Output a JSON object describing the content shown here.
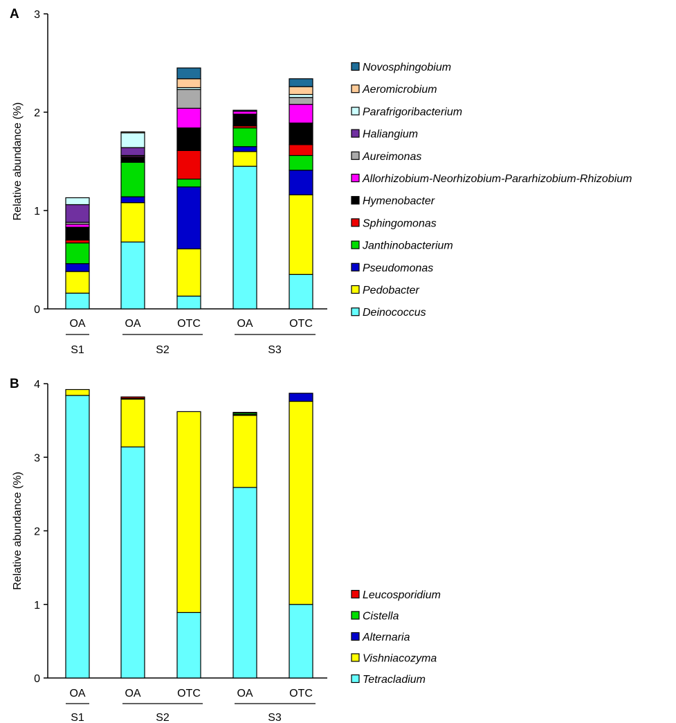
{
  "chart_data": [
    {
      "panel": "A",
      "type": "bar",
      "stacked": true,
      "ylabel": "Relative abundance (%)",
      "ylim": [
        0,
        3
      ],
      "yticks": [
        "0",
        "1",
        "2",
        "3"
      ],
      "categories": [
        "OA",
        "OA",
        "OTC",
        "OA",
        "OTC"
      ],
      "groups": [
        {
          "label": "S1",
          "members": [
            0
          ]
        },
        {
          "label": "S2",
          "members": [
            1,
            2
          ]
        },
        {
          "label": "S3",
          "members": [
            3,
            4
          ]
        }
      ],
      "series": [
        {
          "name": "Deinococcus",
          "color": "#66FFFF",
          "values": [
            0.16,
            0.68,
            0.13,
            1.45,
            0.35
          ]
        },
        {
          "name": "Pedobacter",
          "color": "#FFFF00",
          "values": [
            0.22,
            0.4,
            0.48,
            0.15,
            0.81
          ]
        },
        {
          "name": "Pseudomonas",
          "color": "#0000CC",
          "values": [
            0.08,
            0.06,
            0.63,
            0.05,
            0.25
          ]
        },
        {
          "name": "Janthinobacterium",
          "color": "#00DD00",
          "values": [
            0.21,
            0.35,
            0.08,
            0.19,
            0.15
          ]
        },
        {
          "name": "Sphingomonas",
          "color": "#EE0000",
          "values": [
            0.03,
            0.0,
            0.29,
            0.02,
            0.11
          ]
        },
        {
          "name": "Hymenobacter",
          "color": "#000000",
          "values": [
            0.13,
            0.05,
            0.23,
            0.12,
            0.22
          ]
        },
        {
          "name": "Allorhizobium-Neorhizobium-Pararhizobium-Rhizobium",
          "color": "#FF00FF",
          "values": [
            0.03,
            0.01,
            0.2,
            0.03,
            0.19
          ]
        },
        {
          "name": "Aureimonas",
          "color": "#AAAAAA",
          "values": [
            0.02,
            0.01,
            0.19,
            0.0,
            0.07
          ]
        },
        {
          "name": "Haliangium",
          "color": "#7030A0",
          "values": [
            0.18,
            0.08,
            0.0,
            0.0,
            0.0
          ]
        },
        {
          "name": "Parafrigoribacterium",
          "color": "#CCFFFF",
          "values": [
            0.07,
            0.15,
            0.02,
            0.0,
            0.03
          ]
        },
        {
          "name": "Aeromicrobium",
          "color": "#FFCC99",
          "values": [
            0.0,
            0.01,
            0.09,
            0.0,
            0.08
          ]
        },
        {
          "name": "Novosphingobium",
          "color": "#1F6E99",
          "values": [
            0.0,
            0.0,
            0.11,
            0.01,
            0.08
          ]
        }
      ]
    },
    {
      "panel": "B",
      "type": "bar",
      "stacked": true,
      "ylabel": "Relative abundance (%)",
      "ylim": [
        0,
        4
      ],
      "yticks": [
        "0",
        "1",
        "2",
        "3",
        "4"
      ],
      "categories": [
        "OA",
        "OA",
        "OTC",
        "OA",
        "OTC"
      ],
      "groups": [
        {
          "label": "S1",
          "members": [
            0
          ]
        },
        {
          "label": "S2",
          "members": [
            1,
            2
          ]
        },
        {
          "label": "S3",
          "members": [
            3,
            4
          ]
        }
      ],
      "series": [
        {
          "name": "Tetracladium",
          "color": "#66FFFF",
          "values": [
            3.84,
            3.14,
            0.89,
            2.59,
            1.0
          ]
        },
        {
          "name": "Vishniacozyma",
          "color": "#FFFF00",
          "values": [
            0.08,
            0.65,
            2.73,
            0.98,
            2.76
          ]
        },
        {
          "name": "Alternaria",
          "color": "#0000CC",
          "values": [
            0.0,
            0.01,
            0.0,
            0.01,
            0.11
          ]
        },
        {
          "name": "Cistella",
          "color": "#00DD00",
          "values": [
            0.0,
            0.0,
            0.0,
            0.02,
            0.0
          ]
        },
        {
          "name": "Leucosporidium",
          "color": "#EE0000",
          "values": [
            0.0,
            0.02,
            0.0,
            0.01,
            0.0
          ]
        }
      ]
    }
  ]
}
